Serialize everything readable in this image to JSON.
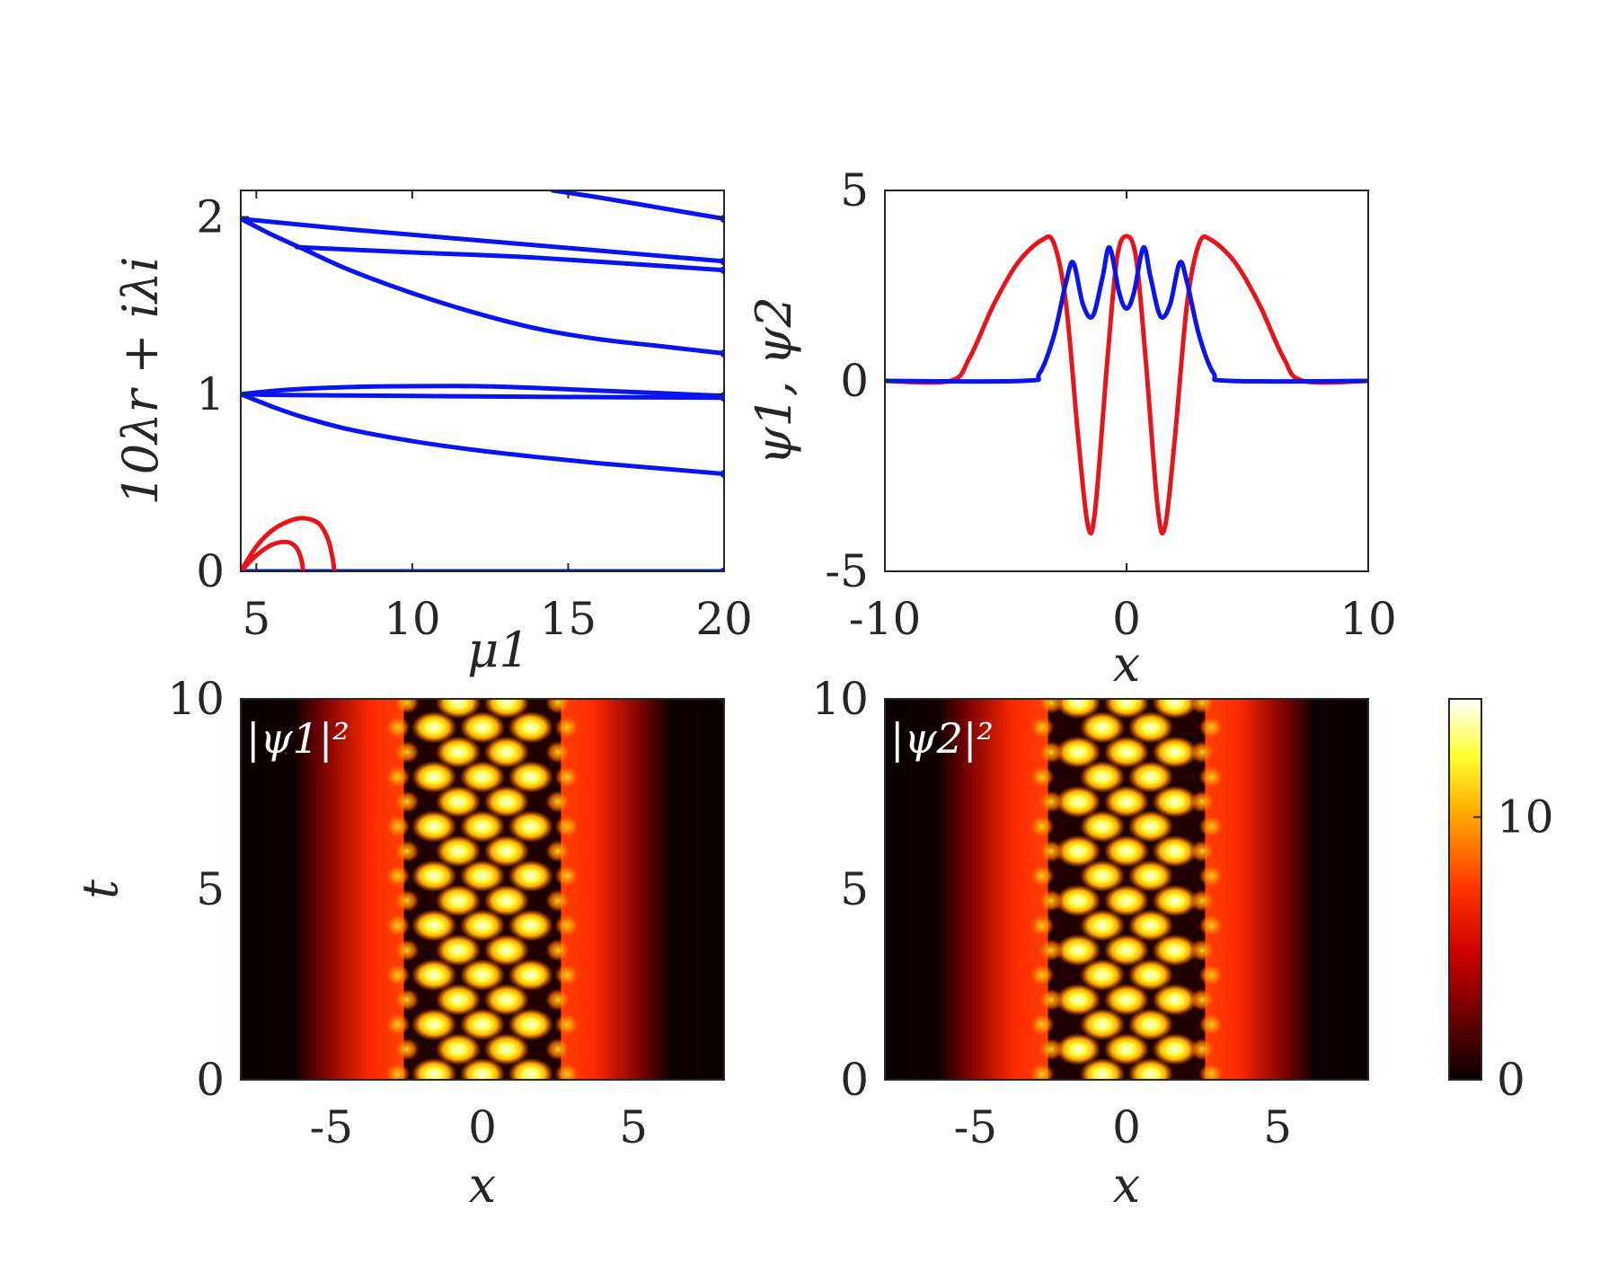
{
  "figure": {
    "background": "#ffffff",
    "text_color": "#262626"
  },
  "colors": {
    "blue": "#0a14ee",
    "red": "#e8141c"
  },
  "chart_data": [
    {
      "type": "line",
      "panel": "top-left",
      "xlabel": "μ1",
      "ylabel": "10λr + iλi",
      "xlim": [
        4.5,
        20
      ],
      "ylim": [
        0,
        2.15
      ],
      "xticks": [
        "5",
        "10",
        "15",
        "20"
      ],
      "yticks": [
        "0",
        "1",
        "2"
      ],
      "grid": false,
      "series": [
        {
          "color": "blue",
          "points": [
            [
              4.5,
              0
            ],
            [
              20,
              0
            ]
          ]
        },
        {
          "color": "blue",
          "points": [
            [
              4.5,
              1.0
            ],
            [
              6,
              1.025
            ],
            [
              8,
              1.04
            ],
            [
              10,
              1.045
            ],
            [
              12,
              1.045
            ],
            [
              14,
              1.035
            ],
            [
              16,
              1.02
            ],
            [
              18,
              1.005
            ],
            [
              20,
              0.99
            ]
          ]
        },
        {
          "color": "blue",
          "points": [
            [
              4.5,
              1.0
            ],
            [
              6,
              0.995
            ],
            [
              10,
              0.99
            ],
            [
              14,
              0.985
            ],
            [
              20,
              0.98
            ]
          ]
        },
        {
          "color": "blue",
          "points": [
            [
              4.5,
              1.0
            ],
            [
              5.5,
              0.93
            ],
            [
              6.5,
              0.87
            ],
            [
              8,
              0.8
            ],
            [
              10,
              0.735
            ],
            [
              12,
              0.685
            ],
            [
              14,
              0.645
            ],
            [
              16,
              0.61
            ],
            [
              18,
              0.58
            ],
            [
              20,
              0.55
            ]
          ]
        },
        {
          "color": "blue",
          "points": [
            [
              4.5,
              1.99
            ],
            [
              8,
              1.93
            ],
            [
              12,
              1.87
            ],
            [
              16,
              1.81
            ],
            [
              20,
              1.75
            ]
          ]
        },
        {
          "color": "blue",
          "points": [
            [
              6.3,
              1.83
            ],
            [
              10,
              1.8
            ],
            [
              14,
              1.77
            ],
            [
              20,
              1.7
            ]
          ]
        },
        {
          "color": "blue",
          "points": [
            [
              4.5,
              1.99
            ],
            [
              5.5,
              1.9
            ],
            [
              6.5,
              1.82
            ],
            [
              8,
              1.7
            ],
            [
              10,
              1.57
            ],
            [
              12,
              1.46
            ],
            [
              14,
              1.37
            ],
            [
              16,
              1.31
            ],
            [
              18,
              1.27
            ],
            [
              20,
              1.23
            ]
          ]
        },
        {
          "color": "blue",
          "points": [
            [
              14.5,
              2.15
            ],
            [
              16,
              2.11
            ],
            [
              18,
              2.05
            ],
            [
              20,
              1.99
            ]
          ]
        },
        {
          "color": "red",
          "points": [
            [
              4.5,
              0
            ],
            [
              5.0,
              0.14
            ],
            [
              5.5,
              0.23
            ],
            [
              6.0,
              0.28
            ],
            [
              6.5,
              0.3
            ],
            [
              7.0,
              0.27
            ],
            [
              7.3,
              0.18
            ],
            [
              7.45,
              0.07
            ],
            [
              7.5,
              0
            ]
          ]
        },
        {
          "color": "red",
          "points": [
            [
              4.5,
              0
            ],
            [
              5.0,
              0.09
            ],
            [
              5.5,
              0.15
            ],
            [
              6.0,
              0.165
            ],
            [
              6.3,
              0.13
            ],
            [
              6.45,
              0.06
            ],
            [
              6.5,
              0
            ]
          ]
        }
      ]
    },
    {
      "type": "line",
      "panel": "top-right",
      "xlabel": "x",
      "ylabel": "ψ1, ψ2",
      "xlim": [
        -10,
        10
      ],
      "ylim": [
        -5,
        5
      ],
      "xticks": [
        "-10",
        "0",
        "10"
      ],
      "yticks": [
        "-5",
        "0",
        "5"
      ],
      "grid": false,
      "series": [
        {
          "color": "red",
          "points": [
            [
              -10,
              0
            ],
            [
              -7.3,
              0
            ],
            [
              -6.5,
              0.6
            ],
            [
              -5.5,
              2.0
            ],
            [
              -4.5,
              3.1
            ],
            [
              -3.5,
              3.7
            ],
            [
              -3.0,
              3.6
            ],
            [
              -2.5,
              2.0
            ],
            [
              -2.0,
              -1.5
            ],
            [
              -1.6,
              -3.8
            ],
            [
              -1.3,
              -3.4
            ],
            [
              -0.8,
              0.5
            ],
            [
              -0.4,
              3.2
            ],
            [
              0,
              3.8
            ],
            [
              0.4,
              3.2
            ],
            [
              0.8,
              0.5
            ],
            [
              1.3,
              -3.4
            ],
            [
              1.6,
              -3.8
            ],
            [
              2.0,
              -1.5
            ],
            [
              2.5,
              2.0
            ],
            [
              3.0,
              3.6
            ],
            [
              3.5,
              3.7
            ],
            [
              4.5,
              3.1
            ],
            [
              5.5,
              2.0
            ],
            [
              6.5,
              0.6
            ],
            [
              7.3,
              0
            ],
            [
              10,
              0
            ]
          ]
        },
        {
          "color": "blue",
          "points": [
            [
              -10,
              0
            ],
            [
              -4.3,
              0
            ],
            [
              -3.6,
              0.2
            ],
            [
              -3.0,
              1.2
            ],
            [
              -2.5,
              2.6
            ],
            [
              -2.2,
              3.1
            ],
            [
              -1.8,
              2.0
            ],
            [
              -1.4,
              1.7
            ],
            [
              -1.0,
              2.7
            ],
            [
              -0.7,
              3.5
            ],
            [
              -0.3,
              2.3
            ],
            [
              0,
              1.9
            ],
            [
              0.3,
              2.3
            ],
            [
              0.7,
              3.5
            ],
            [
              1.0,
              2.7
            ],
            [
              1.4,
              1.7
            ],
            [
              1.8,
              2.0
            ],
            [
              2.2,
              3.1
            ],
            [
              2.5,
              2.6
            ],
            [
              3.0,
              1.2
            ],
            [
              3.6,
              0.2
            ],
            [
              4.3,
              0
            ],
            [
              10,
              0
            ]
          ]
        }
      ]
    },
    {
      "type": "heatmap",
      "panel": "bottom-left",
      "label": "|ψ1|²",
      "xlabel": "x",
      "ylabel": "t",
      "xlim": [
        -8,
        8
      ],
      "ylim": [
        0,
        10
      ],
      "xticks": [
        "-5",
        "0",
        "5"
      ],
      "yticks": [
        "0",
        "5",
        "10"
      ],
      "blob_x": [
        -1.6,
        0,
        1.6
      ],
      "edge_x": [
        -2.6,
        2.6
      ],
      "period": 1.3
    },
    {
      "type": "heatmap",
      "panel": "bottom-right",
      "label": "|ψ2|²",
      "xlabel": "x",
      "ylabel": "",
      "xlim": [
        -8,
        8
      ],
      "ylim": [
        0,
        10
      ],
      "xticks": [
        "-5",
        "0",
        "5"
      ],
      "yticks": [
        "0",
        "5",
        "10"
      ],
      "blob_x": [
        -0.8,
        0.8
      ],
      "edge_x": [
        -2.6,
        2.6
      ],
      "period": 1.3
    },
    {
      "type": "colorbar",
      "colormap": "hot",
      "range": [
        0,
        14.5
      ],
      "ticks": [
        "0",
        "10"
      ]
    }
  ]
}
